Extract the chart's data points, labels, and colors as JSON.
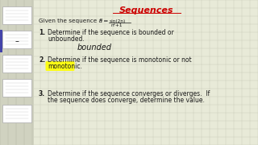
{
  "title": "Sequences",
  "title_color": "#cc0000",
  "bg_color": "#e8ead8",
  "grid_color": "#c8cab8",
  "text_color": "#1a1a1a",
  "sidebar_color": "#d0d2c0",
  "items": [
    {
      "num": "1.",
      "text1": "Determine if the sequence is bounded or",
      "text2": "unbounded.",
      "answer": "bounded",
      "highlight": false
    },
    {
      "num": "2.",
      "text1": "Determine if the sequence is monotonic or not",
      "text2": "monotonic.",
      "answer": null,
      "highlight": true,
      "highlight_color": "#ffff00"
    },
    {
      "num": "3.",
      "text1": "Determine if the sequence converges or diverges.  If",
      "text2": "the sequence does converge, determine the value.",
      "answer": null,
      "highlight": false
    }
  ]
}
